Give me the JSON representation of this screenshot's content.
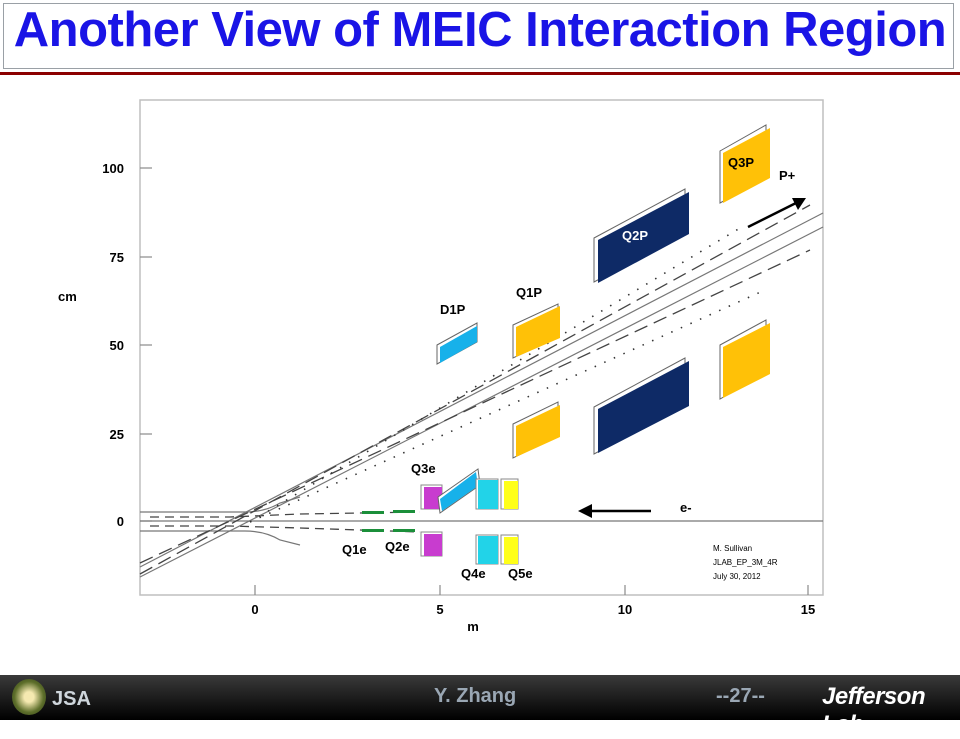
{
  "title": "Another View of MEIC Interaction Region",
  "figure": {
    "y_axis_label": "cm",
    "x_axis_label": "m",
    "y_ticks": [
      "100",
      "75",
      "50",
      "25",
      "0"
    ],
    "x_ticks": [
      "0",
      "5",
      "10",
      "15"
    ],
    "magnets": {
      "q3p": "Q3P",
      "q2p": "Q2P",
      "q1p": "Q1P",
      "d1p": "D1P",
      "q3e": "Q3e",
      "q1e": "Q1e",
      "q2e": "Q2e",
      "q4e": "Q4e",
      "q5e": "Q5e"
    },
    "beams": {
      "proton": "P+",
      "electron": "e-"
    },
    "credit": [
      "M. Sullivan",
      "JLAB_EP_3M_4R",
      "July 30, 2012"
    ],
    "colors": {
      "proton_quad": "#ffc107",
      "q2p": "#0e2a66",
      "dipole": "#17b1ea",
      "electron_quad_small": "#c83ccf",
      "q4e": "#22d3e8",
      "q5e": "#ffff1a"
    }
  },
  "footer": {
    "author": "Y. Zhang",
    "page": "--27--",
    "logo_text": "Jefferson Lab",
    "logo_small": "JSA"
  }
}
